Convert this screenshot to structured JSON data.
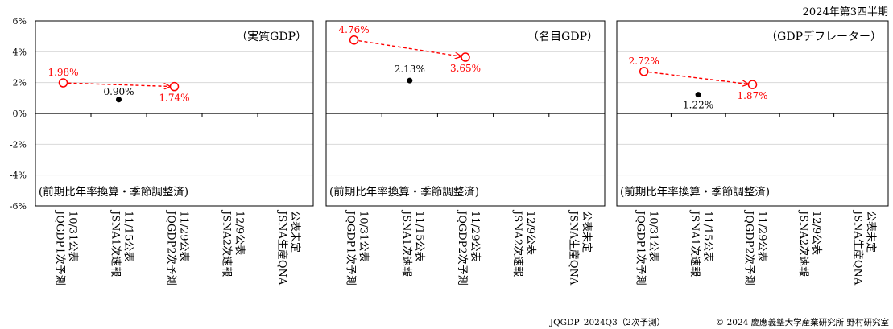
{
  "header": "2024年第3四半期",
  "footer": {
    "left": "JQGDP_2024Q3（2次予測）",
    "right": "© 2024 慶應義塾大学産業研究所 野村研究室"
  },
  "y_ticks": [
    "6%",
    "4%",
    "2%",
    "0%",
    "-2%",
    "-4%",
    "-6%"
  ],
  "categories": [
    [
      "10/31公表",
      "JQGDP1次予測"
    ],
    [
      "11/15公表",
      "JSNA1次速報"
    ],
    [
      "11/29公表",
      "JQGDP2次予測"
    ],
    [
      "12/9公表",
      "JSNA2次速報"
    ],
    [
      "公表未定",
      "JSNA生産QNA"
    ]
  ],
  "note": "(前期比年率換算・季節調整済)",
  "colors": {
    "forecast": "#ff0000",
    "actual": "#000000",
    "grid": "#d9d9d9"
  },
  "chart_data": [
    {
      "type": "scatter",
      "title": "（実質GDP）",
      "ylim": [
        -6,
        6
      ],
      "categories": [
        "10/31公表 JQGDP1次予測",
        "11/15公表 JSNA1次速報",
        "11/29公表 JQGDP2次予測",
        "12/9公表 JSNA2次速報",
        "公表未定 JSNA生産QNA"
      ],
      "forecast": [
        {
          "x": 0,
          "y": 1.98,
          "label": "1.98%"
        },
        {
          "x": 2,
          "y": 1.74,
          "label": "1.74%"
        }
      ],
      "actual": [
        {
          "x": 1,
          "y": 0.9,
          "label": "0.90%"
        }
      ]
    },
    {
      "type": "scatter",
      "title": "（名目GDP）",
      "ylim": [
        -6,
        6
      ],
      "categories": [
        "10/31公表 JQGDP1次予測",
        "11/15公表 JSNA1次速報",
        "11/29公表 JQGDP2次予測",
        "12/9公表 JSNA2次速報",
        "公表未定 JSNA生産QNA"
      ],
      "forecast": [
        {
          "x": 0,
          "y": 4.76,
          "label": "4.76%"
        },
        {
          "x": 2,
          "y": 3.65,
          "label": "3.65%"
        }
      ],
      "actual": [
        {
          "x": 1,
          "y": 2.13,
          "label": "2.13%"
        }
      ]
    },
    {
      "type": "scatter",
      "title": "（GDPデフレーター）",
      "ylim": [
        -6,
        6
      ],
      "categories": [
        "10/31公表 JQGDP1次予測",
        "11/15公表 JSNA1次速報",
        "11/29公表 JQGDP2次予測",
        "12/9公表 JSNA2次速報",
        "公表未定 JSNA生産QNA"
      ],
      "forecast": [
        {
          "x": 0,
          "y": 2.72,
          "label": "2.72%"
        },
        {
          "x": 2,
          "y": 1.87,
          "label": "1.87%"
        }
      ],
      "actual": [
        {
          "x": 1,
          "y": 1.22,
          "label": "1.22%"
        }
      ]
    }
  ]
}
